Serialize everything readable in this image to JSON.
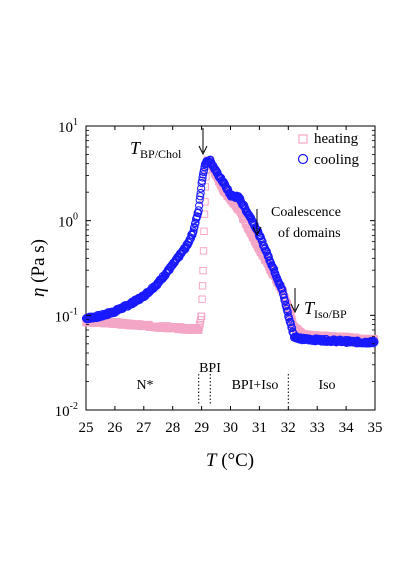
{
  "chart_data": {
    "type": "scatter",
    "xlabel": "T (°C)",
    "ylabel": "η (Pa s)",
    "xlim": [
      25,
      35
    ],
    "ylim": [
      0.01,
      10
    ],
    "yscale": "log",
    "grid": false,
    "legend_position": "top-right",
    "x_ticks": [
      "25",
      "26",
      "27",
      "28",
      "29",
      "30",
      "31",
      "32",
      "33",
      "34",
      "35"
    ],
    "y_ticks": [
      {
        "base": "10",
        "exp": "-2",
        "value": 0.01
      },
      {
        "base": "10",
        "exp": "-1",
        "value": 0.1
      },
      {
        "base": "10",
        "exp": "0",
        "value": 1
      },
      {
        "base": "10",
        "exp": "1",
        "value": 10
      }
    ],
    "series": [
      {
        "name": "heating",
        "marker": "square",
        "color": "#f4a6c6",
        "x": [
          25.0,
          25.5,
          26.0,
          26.5,
          27.0,
          27.5,
          28.0,
          28.5,
          28.9,
          29.0,
          29.05,
          29.1,
          29.15,
          29.2,
          29.3,
          29.5,
          29.8,
          30.0,
          30.3,
          30.6,
          31.0,
          31.4,
          31.8,
          32.0,
          32.2,
          32.5,
          33.0,
          33.5,
          34.0,
          34.5,
          35.0
        ],
        "y": [
          0.085,
          0.085,
          0.083,
          0.08,
          0.078,
          0.076,
          0.074,
          0.072,
          0.072,
          0.1,
          0.3,
          1.2,
          3.0,
          4.4,
          4.2,
          3.0,
          2.0,
          1.7,
          1.3,
          0.85,
          0.5,
          0.3,
          0.18,
          0.12,
          0.075,
          0.062,
          0.06,
          0.059,
          0.058,
          0.056,
          0.055
        ]
      },
      {
        "name": "cooling",
        "marker": "circle",
        "color": "#1a1aff",
        "x": [
          35.0,
          34.5,
          34.0,
          33.5,
          33.0,
          32.5,
          32.2,
          32.0,
          31.8,
          31.4,
          31.0,
          30.8,
          30.5,
          30.3,
          30.0,
          29.8,
          29.5,
          29.3,
          29.2,
          29.1,
          29.0,
          28.9,
          28.7,
          28.5,
          28.0,
          27.5,
          27.0,
          26.5,
          26.0,
          25.5,
          25.0
        ],
        "y": [
          0.052,
          0.052,
          0.053,
          0.054,
          0.055,
          0.056,
          0.06,
          0.1,
          0.18,
          0.36,
          0.7,
          0.95,
          1.35,
          1.75,
          1.85,
          2.4,
          3.3,
          4.3,
          4.3,
          3.8,
          2.5,
          1.3,
          0.75,
          0.55,
          0.34,
          0.22,
          0.16,
          0.13,
          0.11,
          0.098,
          0.093
        ]
      }
    ],
    "annotations": [
      {
        "kind": "arrow",
        "label_main": "T",
        "label_sub": "BP/Chol",
        "x": 29.15,
        "y": 4.4
      },
      {
        "kind": "arrow",
        "label_lines": [
          "Coalescence",
          "of domains"
        ],
        "x": 31.0,
        "y": 0.75
      },
      {
        "kind": "arrow",
        "label_main": "T",
        "label_sub": "Iso/BP",
        "x": 32.1,
        "y": 0.095
      }
    ],
    "phase_regions": [
      {
        "label": "N*",
        "x": 27.0
      },
      {
        "label": "BPI",
        "x": 29.15
      },
      {
        "label": "BPI+Iso",
        "x": 30.7
      },
      {
        "label": "Iso",
        "x": 33.6
      }
    ],
    "phase_boundaries": [
      28.9,
      29.3,
      32.0
    ]
  }
}
